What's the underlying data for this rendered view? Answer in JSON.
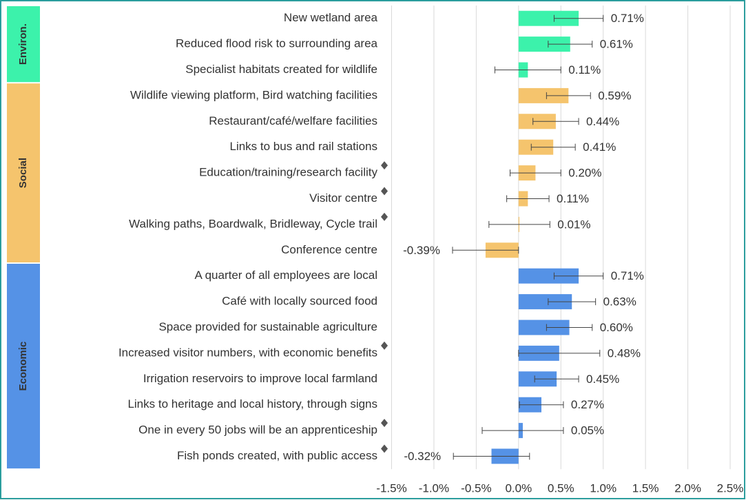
{
  "chart_data": {
    "type": "bar",
    "categories": [
      "New wetland area",
      "Reduced flood risk to surrounding area",
      "Specialist habitats created for wildlife",
      "Wildlife viewing platform, Bird watching facilities",
      "Restaurant/café/welfare facilities",
      "Links to bus and rail stations",
      "Education/training/research facility",
      "Visitor centre",
      "Walking paths, Boardwalk, Bridleway, Cycle trail",
      "Conference centre",
      "A quarter of all employees are local",
      "Café with locally sourced food",
      "Space provided for sustainable agriculture",
      "Increased visitor numbers, with economic benefits",
      "Irrigation reservoirs to improve local farmland",
      "Links to heritage and local history, through signs",
      "One in every 50 jobs will be an apprenticeship",
      "Fish ponds created, with public access"
    ],
    "values": [
      0.71,
      0.61,
      0.11,
      0.59,
      0.44,
      0.41,
      0.2,
      0.11,
      0.01,
      -0.39,
      0.71,
      0.63,
      0.6,
      0.48,
      0.45,
      0.27,
      0.05,
      -0.32
    ],
    "value_labels": [
      "0.71%",
      "0.61%",
      "0.11%",
      "0.59%",
      "0.44%",
      "0.41%",
      "0.20%",
      "0.11%",
      "0.01%",
      "-0.39%",
      "0.71%",
      "0.63%",
      "0.60%",
      "0.48%",
      "0.45%",
      "0.27%",
      "0.05%",
      "-0.32%"
    ],
    "errors": [
      0.29,
      0.26,
      0.39,
      0.26,
      0.27,
      0.26,
      0.3,
      0.25,
      0.36,
      0.39,
      0.29,
      0.28,
      0.27,
      0.48,
      0.26,
      0.26,
      0.48,
      0.45
    ],
    "flagged": [
      false,
      false,
      false,
      false,
      false,
      false,
      true,
      true,
      true,
      false,
      false,
      false,
      false,
      true,
      false,
      false,
      true,
      true
    ],
    "groups": [
      {
        "name": "Environ.",
        "color": "#3cf2ab",
        "size": 3
      },
      {
        "name": "Social",
        "color": "#f5c46d",
        "size": 7
      },
      {
        "name": "Economic",
        "color": "#5592e6",
        "size": 8
      }
    ],
    "xlim": [
      -1.5,
      2.5
    ],
    "xticks": [
      {
        "value": -1.5,
        "label": "-1.5%"
      },
      {
        "value": -1.0,
        "label": "-1.0%"
      },
      {
        "value": -0.5,
        "label": "-0.5%"
      },
      {
        "value": 0,
        "label": "0.0%"
      },
      {
        "value": 0.5,
        "label": "0.5%"
      },
      {
        "value": 1.0,
        "label": "1.0%"
      },
      {
        "value": 1.5,
        "label": "1.5%"
      },
      {
        "value": 2.0,
        "label": "2.0%"
      },
      {
        "value": 2.5,
        "label": "2.5%"
      }
    ],
    "grid": true
  }
}
